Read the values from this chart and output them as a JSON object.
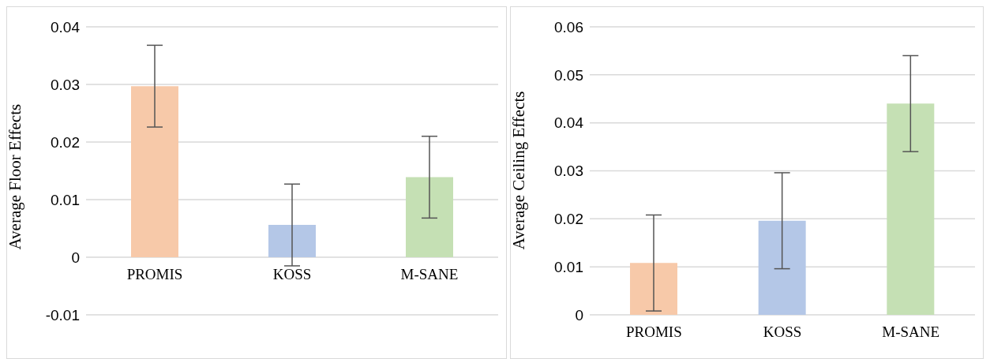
{
  "chart_data": [
    {
      "type": "bar",
      "ylabel": "Average Floor Effects",
      "categories": [
        "PROMIS",
        "KOSS",
        "M-SANE"
      ],
      "values": [
        0.0297,
        0.0056,
        0.0139
      ],
      "errors": [
        0.0071,
        0.0071,
        0.0071
      ],
      "colors": [
        "#f7c9a9",
        "#b4c7e7",
        "#c5e0b4"
      ],
      "ylim": [
        -0.01,
        0.04
      ],
      "yticks": [
        -0.01,
        0,
        0.01,
        0.02,
        0.03,
        0.04
      ],
      "grid": "y"
    },
    {
      "type": "bar",
      "ylabel": "Average Ceiling Effects",
      "categories": [
        "PROMIS",
        "KOSS",
        "M-SANE"
      ],
      "values": [
        0.0108,
        0.0196,
        0.044
      ],
      "errors": [
        0.01,
        0.01,
        0.01
      ],
      "colors": [
        "#f7c9a9",
        "#b4c7e7",
        "#c5e0b4"
      ],
      "ylim": [
        0,
        0.06
      ],
      "yticks": [
        0,
        0.01,
        0.02,
        0.03,
        0.04,
        0.05,
        0.06
      ],
      "grid": "y"
    }
  ]
}
